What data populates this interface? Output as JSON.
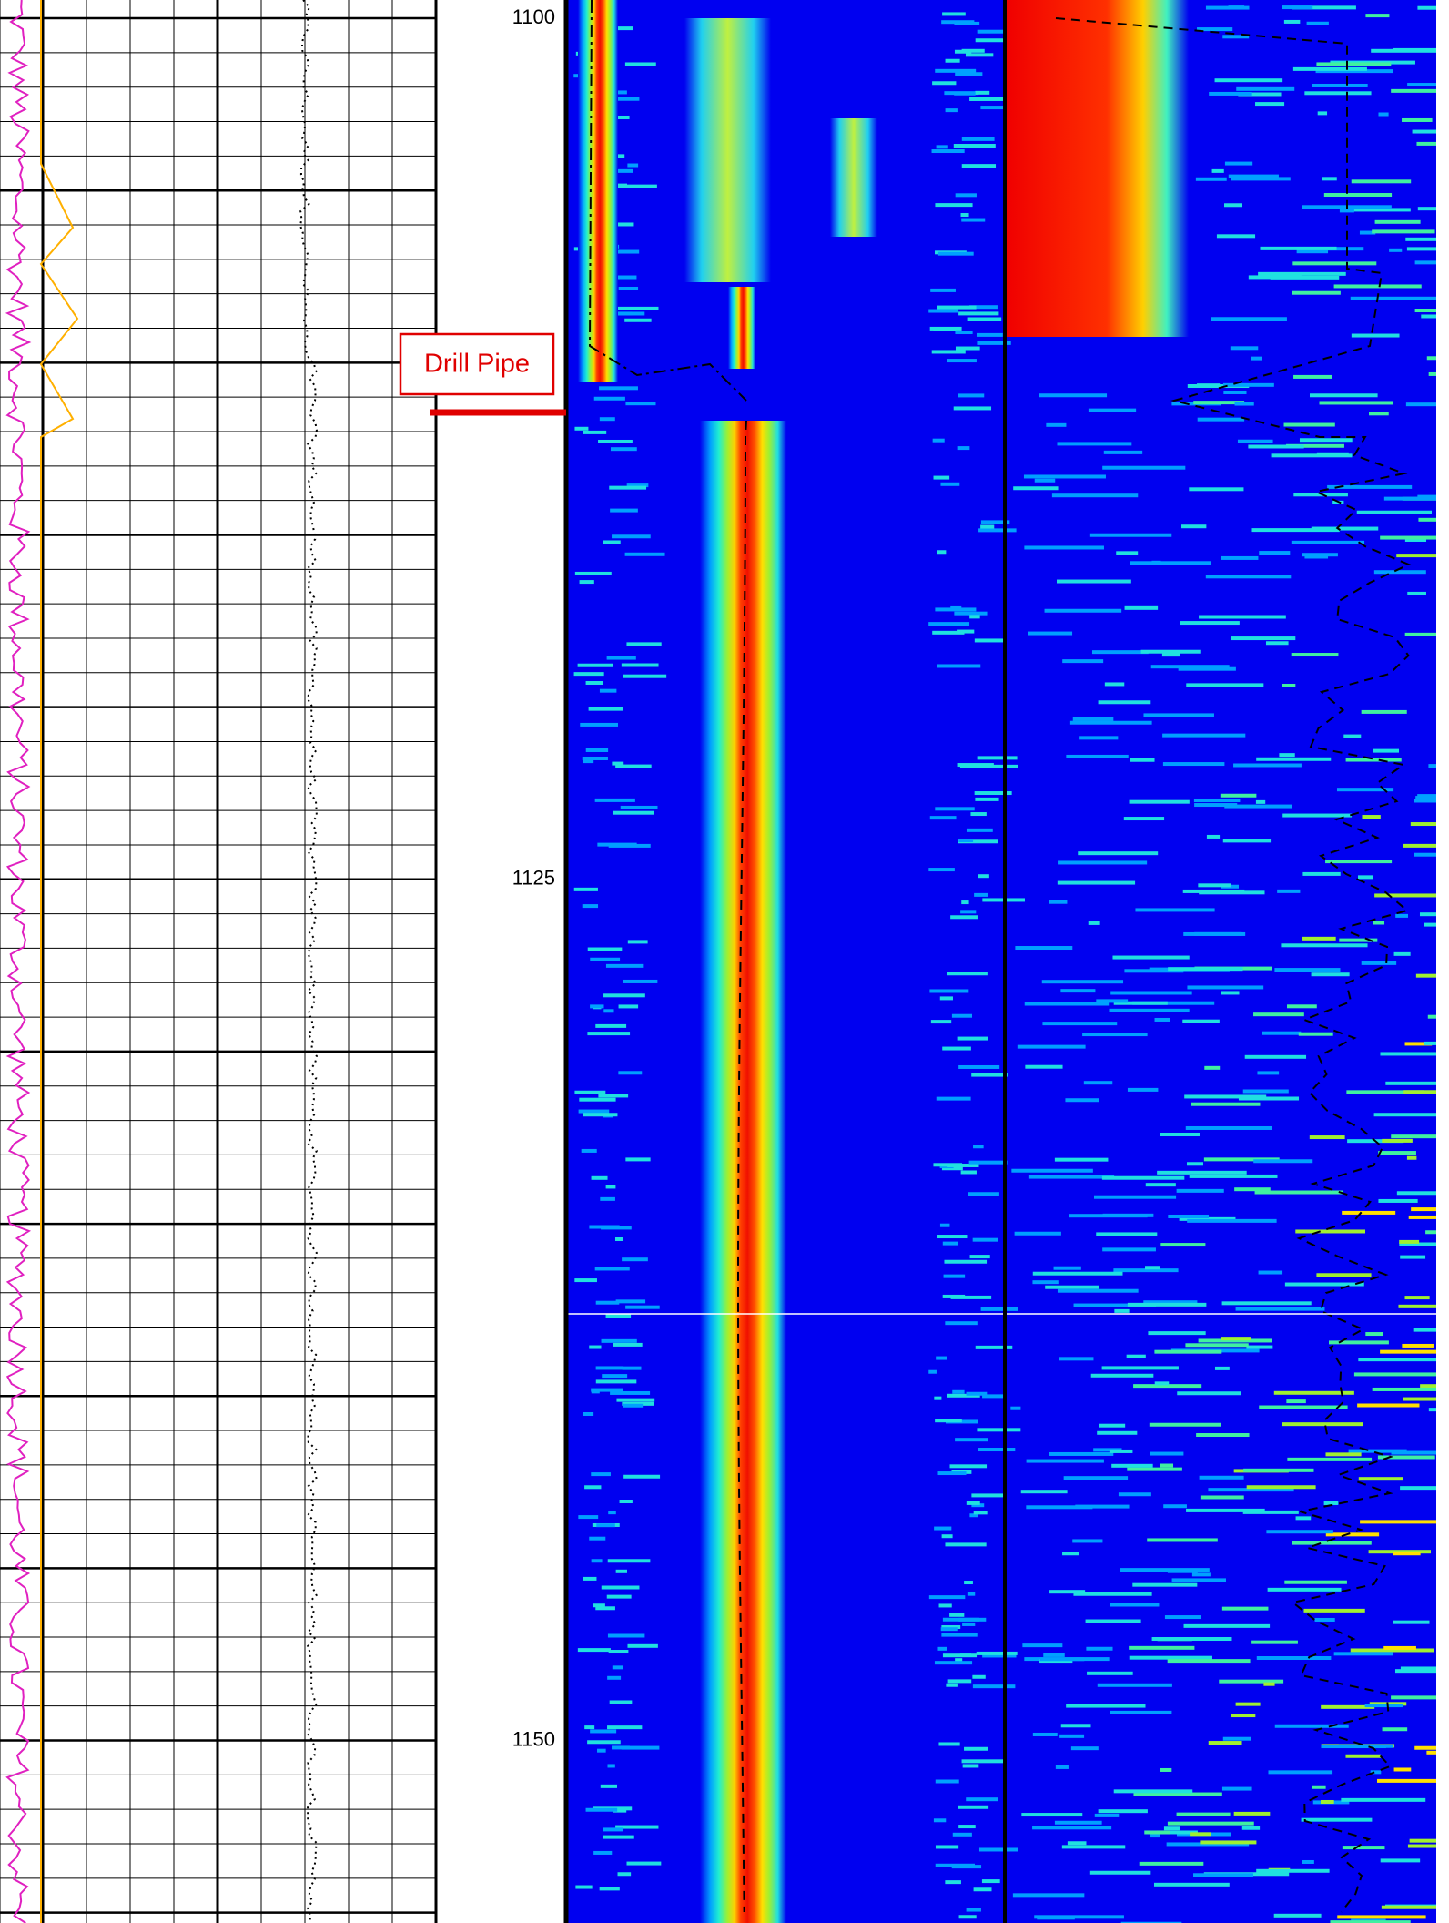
{
  "chart_data": {
    "type": "well-log",
    "ylim": [
      1099.47,
      1155.3
    ],
    "yticks": [
      1100,
      1125,
      1150
    ],
    "annotation": "Drill Pipe"
  }
}
